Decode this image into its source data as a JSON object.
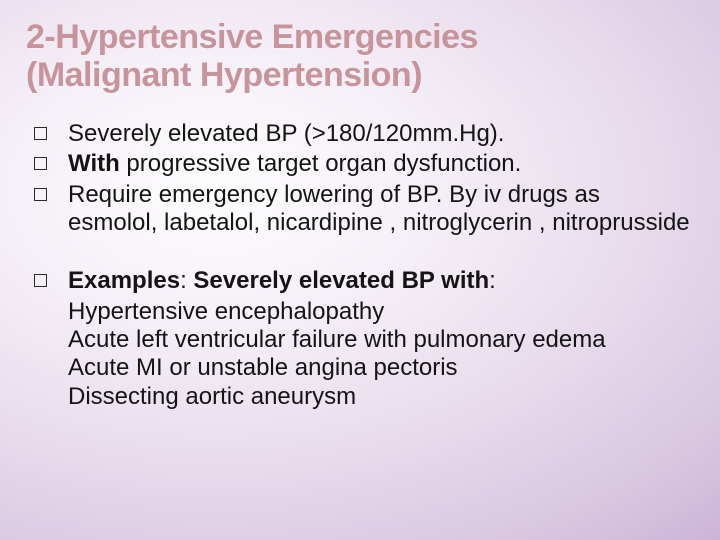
{
  "title_line1": "2-Hypertensive Emergencies",
  "title_line2": "(Malignant Hypertension)",
  "bullets": {
    "b1": "Severely elevated BP (>180/120mm.Hg).",
    "b2_prefix_bold": "With",
    "b2_rest": " progressive target organ dysfunction.",
    "b3": "Require emergency  lowering of BP. By iv drugs as esmolol, labetalol, nicardipine , nitroglycerin , nitroprusside",
    "b4_prefix_bold": "Examples",
    "b4_mid": ": ",
    "b4_mid_bold": "Severely elevated BP with",
    "b4_colon": ":"
  },
  "sub": {
    "s1": "Hypertensive encephalopathy",
    "s2": "Acute left ventricular failure with pulmonary edema",
    "s3": "Acute MI or unstable angina pectoris",
    "s4": "Dissecting aortic aneurysm"
  }
}
